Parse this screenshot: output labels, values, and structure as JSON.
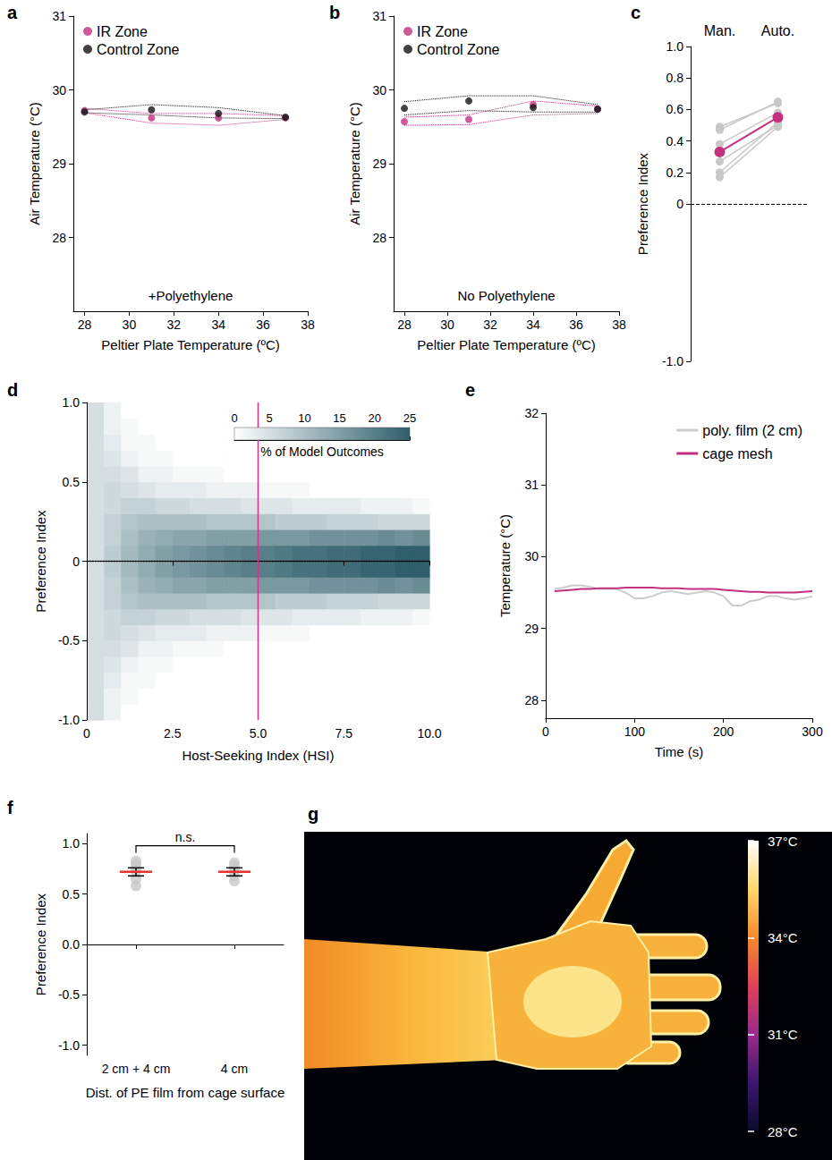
{
  "chart_data": [
    {
      "panel": "a",
      "type": "line",
      "annotation": "+Polyethylene",
      "x_label": "Peltier Plate Temperature (ºC)",
      "y_label": "Air Temperature (°C)",
      "xlim": [
        27.5,
        38
      ],
      "xticks": [
        28,
        30,
        32,
        34,
        36,
        38
      ],
      "ylim": [
        27,
        31
      ],
      "yticks": [
        28,
        29,
        30,
        31
      ],
      "x": [
        28,
        31,
        34,
        37
      ],
      "marker": "circle",
      "line_style": "dotted",
      "legend": "top-left",
      "series": [
        {
          "name": "IR Zone",
          "color": "#c2307f",
          "values": [
            29.72,
            29.62,
            29.62,
            29.62
          ],
          "upper": [
            29.75,
            29.68,
            29.68,
            29.65
          ],
          "lower": [
            29.69,
            29.55,
            29.52,
            29.6
          ]
        },
        {
          "name": "Control Zone",
          "color": "#111111",
          "values": [
            29.7,
            29.73,
            29.68,
            29.63
          ],
          "upper": [
            29.73,
            29.8,
            29.76,
            29.65
          ],
          "lower": [
            29.69,
            29.66,
            29.62,
            29.61
          ]
        }
      ]
    },
    {
      "panel": "b",
      "type": "line",
      "annotation": "No Polyethylene",
      "x_label": "Peltier Plate Temperature (ºC)",
      "y_label": "Air Temperature (°C)",
      "xlim": [
        27.5,
        38
      ],
      "xticks": [
        28,
        30,
        32,
        34,
        36,
        38
      ],
      "ylim": [
        27,
        31
      ],
      "yticks": [
        28,
        29,
        30,
        31
      ],
      "x": [
        28,
        31,
        34,
        37
      ],
      "marker": "circle",
      "line_style": "dotted",
      "legend": "top-left",
      "series": [
        {
          "name": "IR Zone",
          "color": "#c2307f",
          "values": [
            29.57,
            29.6,
            29.8,
            29.74
          ],
          "upper": [
            29.63,
            29.66,
            29.85,
            29.78
          ],
          "lower": [
            29.52,
            29.53,
            29.66,
            29.68
          ]
        },
        {
          "name": "Control Zone",
          "color": "#111111",
          "values": [
            29.75,
            29.85,
            29.76,
            29.74
          ],
          "upper": [
            29.84,
            29.92,
            29.92,
            29.8
          ],
          "lower": [
            29.66,
            29.72,
            29.7,
            29.7
          ]
        }
      ]
    },
    {
      "panel": "c",
      "type": "paired",
      "categories": [
        "Man.",
        "Auto."
      ],
      "y_label": "Preference Index",
      "ylim": [
        -1,
        1
      ],
      "yticks": [
        {
          "value": -1,
          "label": "-1.0"
        },
        0,
        0.2,
        0.4,
        0.6,
        0.8,
        {
          "value": 1,
          "label": "1.0"
        }
      ],
      "color": "#c8c8c8",
      "marker": "circle",
      "individuals": [
        [
          0.49,
          0.64
        ],
        [
          0.47,
          0.65
        ],
        [
          0.38,
          0.58
        ],
        [
          0.27,
          0.5
        ],
        [
          0.2,
          0.52
        ],
        [
          0.17,
          0.49
        ]
      ],
      "mean": {
        "values": [
          0.33,
          0.55
        ],
        "color": "#c2307f"
      },
      "hline": {
        "y": 0,
        "line_style": "dashed"
      }
    },
    {
      "panel": "d",
      "type": "heatmap",
      "x_label": "Host-Seeking Index (HSI)",
      "y_label": "Preference Index",
      "xlim": [
        0,
        10
      ],
      "xticks": [
        0,
        2.5,
        {
          "value": 5,
          "label": "5.0"
        },
        7.5,
        {
          "value": 10,
          "label": "10.0"
        }
      ],
      "ylim": [
        -1,
        1
      ],
      "yticks": [
        {
          "value": -1,
          "label": "-1.0"
        },
        -0.5,
        0,
        0.5,
        {
          "value": 1,
          "label": "1.0"
        }
      ],
      "x_bins": [
        0,
        0.5,
        1,
        1.5,
        2,
        2.5,
        3,
        3.5,
        4,
        4.5,
        5,
        5.5,
        6,
        6.5,
        7,
        7.5,
        8,
        8.5,
        9,
        9.5,
        10
      ],
      "y_bins": [
        -1,
        -0.9,
        -0.8,
        -0.7,
        -0.6,
        -0.5,
        -0.4,
        -0.3,
        -0.2,
        -0.1,
        0,
        0.1,
        0.2,
        0.3,
        0.4,
        0.5,
        0.6,
        0.7,
        0.8,
        0.9,
        1
      ],
      "cells": [
        [
          5,
          5,
          5,
          5,
          5,
          5,
          5,
          5,
          5,
          5,
          5,
          5,
          5,
          5,
          5,
          5,
          5,
          5,
          5,
          5
        ],
        [
          2,
          2,
          3,
          4,
          5,
          6,
          6,
          7,
          7,
          8,
          8,
          7,
          7,
          6,
          6,
          5,
          4,
          3,
          2,
          2
        ],
        [
          0,
          1,
          1,
          2,
          4,
          5,
          7,
          9,
          10,
          11,
          11,
          10,
          9,
          7,
          5,
          4,
          2,
          1,
          1,
          0
        ],
        [
          0,
          0,
          1,
          1,
          2,
          4,
          7,
          10,
          12,
          13,
          13,
          12,
          10,
          7,
          4,
          2,
          1,
          1,
          0,
          0
        ],
        [
          0,
          0,
          0,
          1,
          2,
          3,
          6,
          10,
          13,
          15,
          15,
          13,
          10,
          6,
          3,
          2,
          1,
          0,
          0,
          0
        ],
        [
          0,
          0,
          0,
          0,
          1,
          3,
          6,
          10,
          14,
          16,
          16,
          14,
          10,
          6,
          3,
          1,
          0,
          0,
          0,
          0
        ],
        [
          0,
          0,
          0,
          0,
          1,
          3,
          5,
          10,
          14,
          17,
          17,
          14,
          10,
          5,
          3,
          1,
          0,
          0,
          0,
          0
        ],
        [
          0,
          0,
          0,
          0,
          1,
          2,
          5,
          9,
          15,
          18,
          18,
          15,
          9,
          5,
          2,
          1,
          0,
          0,
          0,
          0
        ],
        [
          0,
          0,
          0,
          0,
          0,
          2,
          5,
          9,
          15,
          19,
          19,
          15,
          9,
          5,
          2,
          0,
          0,
          0,
          0,
          0
        ],
        [
          0,
          0,
          0,
          0,
          0,
          2,
          4,
          9,
          15,
          20,
          20,
          15,
          9,
          4,
          2,
          0,
          0,
          0,
          0,
          0
        ],
        [
          0,
          0,
          0,
          0,
          0,
          1,
          4,
          9,
          16,
          20,
          20,
          16,
          9,
          4,
          1,
          0,
          0,
          0,
          0,
          0
        ],
        [
          0,
          0,
          0,
          0,
          0,
          1,
          4,
          8,
          16,
          21,
          21,
          16,
          8,
          4,
          1,
          0,
          0,
          0,
          0,
          0
        ],
        [
          0,
          0,
          0,
          0,
          0,
          1,
          3,
          8,
          16,
          22,
          22,
          16,
          8,
          3,
          1,
          0,
          0,
          0,
          0,
          0
        ],
        [
          0,
          0,
          0,
          0,
          0,
          0,
          3,
          8,
          17,
          22,
          22,
          17,
          8,
          3,
          0,
          0,
          0,
          0,
          0,
          0
        ],
        [
          0,
          0,
          0,
          0,
          0,
          0,
          3,
          7,
          17,
          23,
          23,
          17,
          7,
          3,
          0,
          0,
          0,
          0,
          0,
          0
        ],
        [
          0,
          0,
          0,
          0,
          0,
          0,
          3,
          7,
          17,
          23,
          23,
          17,
          7,
          3,
          0,
          0,
          0,
          0,
          0,
          0
        ],
        [
          0,
          0,
          0,
          0,
          0,
          0,
          2,
          7,
          17,
          24,
          24,
          17,
          7,
          2,
          0,
          0,
          0,
          0,
          0,
          0
        ],
        [
          0,
          0,
          0,
          0,
          0,
          0,
          2,
          6,
          18,
          24,
          24,
          18,
          6,
          2,
          0,
          0,
          0,
          0,
          0,
          0
        ],
        [
          0,
          0,
          0,
          0,
          0,
          0,
          2,
          6,
          17,
          25,
          25,
          17,
          6,
          2,
          0,
          0,
          0,
          0,
          0,
          0
        ],
        [
          0,
          0,
          0,
          0,
          0,
          0,
          1,
          6,
          18,
          25,
          25,
          18,
          6,
          1,
          0,
          0,
          0,
          0,
          0,
          0
        ]
      ],
      "colorbar": {
        "label": "% of Model Outcomes",
        "range": [
          0,
          25
        ],
        "ticks": [
          0,
          5,
          10,
          15,
          20,
          25
        ],
        "colors": [
          "#ffffff",
          "#2e5f6b"
        ]
      },
      "vline": {
        "x": 5,
        "color": "#d6338a"
      },
      "hline": {
        "y": 0,
        "line_style": "dotted"
      }
    },
    {
      "panel": "e",
      "type": "line",
      "x_label": "Time (s)",
      "y_label": "Temperature (°C)",
      "xlim": [
        0,
        300
      ],
      "xticks": [
        0,
        100,
        200,
        300
      ],
      "ylim": [
        27.75,
        32
      ],
      "yticks": [
        28,
        29,
        30,
        31,
        32
      ],
      "legend": "top-right",
      "x": [
        10,
        20,
        30,
        40,
        50,
        60,
        70,
        80,
        90,
        100,
        110,
        120,
        130,
        140,
        150,
        160,
        170,
        180,
        190,
        200,
        210,
        220,
        230,
        240,
        250,
        260,
        270,
        280,
        290,
        300
      ],
      "series": [
        {
          "name": "poly. film (2 cm)",
          "color": "#cccccc",
          "values": [
            29.55,
            29.57,
            29.6,
            29.6,
            29.58,
            29.55,
            29.55,
            29.55,
            29.5,
            29.42,
            29.42,
            29.45,
            29.5,
            29.52,
            29.5,
            29.48,
            29.5,
            29.52,
            29.5,
            29.45,
            29.32,
            29.32,
            29.38,
            29.4,
            29.45,
            29.45,
            29.42,
            29.4,
            29.42,
            29.45
          ]
        },
        {
          "name": "cage mesh",
          "color": "#c2307f",
          "values": [
            29.52,
            29.53,
            29.54,
            29.55,
            29.55,
            29.56,
            29.56,
            29.56,
            29.57,
            29.57,
            29.57,
            29.57,
            29.56,
            29.56,
            29.56,
            29.55,
            29.55,
            29.55,
            29.55,
            29.54,
            29.53,
            29.52,
            29.51,
            29.51,
            29.5,
            29.5,
            29.5,
            29.5,
            29.51,
            29.52
          ]
        }
      ]
    },
    {
      "panel": "f",
      "type": "scatter",
      "categories": [
        "2 cm + 4 cm",
        "4 cm"
      ],
      "x_label": "Dist. of PE film from cage surface",
      "y_label": "Preference Index",
      "ylim": [
        -1.1,
        1.1
      ],
      "yticks": [
        {
          "value": -1,
          "label": "-1.0"
        },
        -0.5,
        {
          "value": 0,
          "label": "0.0"
        },
        0.5,
        {
          "value": 1,
          "label": "1.0"
        }
      ],
      "color": "#c8c8c8",
      "marker": "circle",
      "points": [
        [
          0.58,
          0.65,
          0.72,
          0.76,
          0.8,
          0.83
        ],
        [
          0.63,
          0.68,
          0.72,
          0.75,
          0.78,
          0.81
        ]
      ],
      "mean": {
        "values": [
          0.72,
          0.72
        ],
        "error": [
          0.04,
          0.04
        ],
        "color": "#e8322b"
      },
      "bracket": {
        "label": "n.s.",
        "y": 0.98
      },
      "hline": {
        "y": 0,
        "line_style": "dashed"
      }
    },
    {
      "panel": "g",
      "type": "image",
      "colorbar": {
        "range": [
          28,
          37
        ],
        "ticks": [
          {
            "value": 28,
            "label": "28°C"
          },
          {
            "value": 31,
            "label": "31°C"
          },
          {
            "value": 34,
            "label": "34°C"
          },
          {
            "value": 37,
            "label": "37°C"
          }
        ],
        "colors": [
          "#0a0a2e",
          "#3a1670",
          "#9a2a8a",
          "#e0405a",
          "#f58a2a",
          "#ffd86a",
          "#ffffff"
        ]
      }
    }
  ]
}
